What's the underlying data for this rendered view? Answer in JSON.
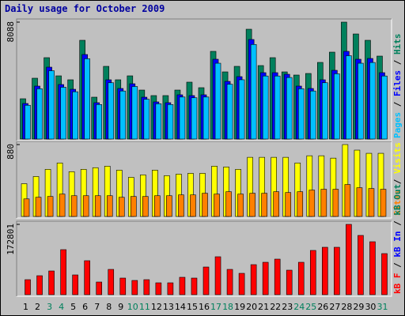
{
  "chart_data": [
    {
      "type": "bar",
      "title": "Daily usage for October 2009",
      "categories": [
        "1",
        "2",
        "3",
        "4",
        "5",
        "6",
        "7",
        "8",
        "9",
        "10",
        "11",
        "12",
        "13",
        "14",
        "15",
        "16",
        "17",
        "18",
        "19",
        "20",
        "21",
        "22",
        "23",
        "24",
        "25",
        "26",
        "27",
        "28",
        "29",
        "30",
        "31"
      ],
      "label_colors": [
        "#000000",
        "#000000",
        "#00805c",
        "#00805c",
        "#000000",
        "#000000",
        "#000000",
        "#000000",
        "#000000",
        "#00805c",
        "#00805c",
        "#000000",
        "#000000",
        "#000000",
        "#000000",
        "#000000",
        "#00805c",
        "#00805c",
        "#000000",
        "#000000",
        "#000000",
        "#000000",
        "#000000",
        "#00805c",
        "#00805c",
        "#000000",
        "#000000",
        "#000000",
        "#000000",
        "#000000",
        "#00805c"
      ],
      "ylim": [
        0,
        8088
      ],
      "yticks": [
        8088
      ],
      "legend_separator": " / ",
      "series": [
        {
          "name": "Pages",
          "color": "#00c0ff",
          "values": [
            2336,
            3479,
            4724,
            3582,
            3271,
            5555,
            2388,
            3894,
            3323,
            3634,
            2751,
            2441,
            2388,
            2907,
            2856,
            2907,
            5244,
            3790,
            4101,
            6542,
            4361,
            4361,
            4257,
            3479,
            3323,
            3894,
            4516,
            5763,
            5244,
            5295,
            4361
          ]
        },
        {
          "name": "Files",
          "color": "#0000ff",
          "values": [
            2459,
            3662,
            4973,
            3771,
            3443,
            5847,
            2514,
            4099,
            3498,
            3825,
            2896,
            2569,
            2514,
            3060,
            3006,
            3060,
            5520,
            3989,
            4317,
            6886,
            4591,
            4591,
            4481,
            3662,
            3498,
            4099,
            4754,
            6066,
            5520,
            5574,
            4591
          ]
        },
        {
          "name": "Hits",
          "color": "#00805c",
          "values": [
            2787,
            4208,
            5629,
            4372,
            4099,
            6831,
            2896,
            5028,
            4099,
            4372,
            3388,
            3006,
            3006,
            3388,
            3935,
            3552,
            6066,
            4645,
            5028,
            7596,
            5082,
            5629,
            4645,
            4427,
            4536,
            5301,
            6011,
            8088,
            7268,
            6831,
            5738
          ]
        }
      ]
    },
    {
      "type": "bar",
      "ylim": [
        0,
        880
      ],
      "yticks": [
        880
      ],
      "legend_separator": " / ",
      "series": [
        {
          "name": "Sites",
          "color": "#ff8000",
          "values": [
            215,
            235,
            245,
            274,
            254,
            254,
            254,
            254,
            235,
            245,
            245,
            254,
            254,
            264,
            264,
            284,
            274,
            303,
            274,
            284,
            284,
            303,
            293,
            303,
            323,
            333,
            333,
            391,
            352,
            342,
            333
          ]
        },
        {
          "name": "Visits",
          "color": "#ffff00",
          "values": [
            401,
            489,
            577,
            655,
            548,
            577,
            597,
            616,
            567,
            479,
            509,
            567,
            499,
            518,
            528,
            528,
            616,
            606,
            577,
            724,
            724,
            724,
            724,
            655,
            743,
            743,
            714,
            880,
            812,
            773,
            773
          ]
        }
      ]
    },
    {
      "type": "bar",
      "ylim": [
        0,
        172801
      ],
      "yticks": [
        172801
      ],
      "legend_separator": " / ",
      "series": [
        {
          "name": "kB F",
          "color": "#ff0000",
          "values": [
            36891,
            46598,
            58248,
            110671,
            48540,
            83489,
            31066,
            62131,
            40774,
            34949,
            36891,
            29124,
            29124,
            42715,
            40774,
            67956,
            93197,
            62131,
            52423,
            73781,
            79606,
            87372,
            60190,
            79606,
            108730,
            116496,
            116496,
            172801,
            145620,
            130087,
            100963
          ]
        },
        {
          "name": "kB In",
          "color": "#0000ff",
          "values": [
            0,
            0,
            0,
            0,
            0,
            0,
            0,
            0,
            0,
            0,
            0,
            0,
            0,
            0,
            0,
            0,
            0,
            0,
            0,
            0,
            0,
            0,
            0,
            0,
            0,
            0,
            0,
            0,
            0,
            0,
            0
          ]
        },
        {
          "name": "kB Out",
          "color": "#00805c",
          "values": [
            0,
            0,
            0,
            0,
            0,
            0,
            0,
            0,
            0,
            0,
            0,
            0,
            0,
            0,
            0,
            0,
            0,
            0,
            0,
            0,
            0,
            0,
            0,
            0,
            0,
            0,
            0,
            0,
            0,
            0,
            0
          ]
        }
      ]
    }
  ]
}
